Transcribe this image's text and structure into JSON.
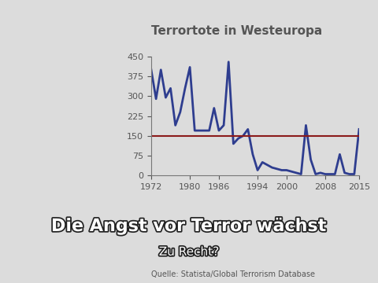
{
  "chart_data": {
    "type": "line",
    "title": "Terrortote in Westeuropa",
    "headline": "Die Angst vor Terror wächst",
    "subheadline": "Zu Recht?",
    "source": "Quelle: Statista/Global Terrorism Database",
    "x": [
      1972,
      1973,
      1974,
      1975,
      1976,
      1977,
      1978,
      1979,
      1980,
      1981,
      1982,
      1983,
      1984,
      1985,
      1986,
      1987,
      1988,
      1989,
      1990,
      1991,
      1992,
      1993,
      1994,
      1995,
      1996,
      1997,
      1998,
      1999,
      2000,
      2001,
      2002,
      2003,
      2004,
      2005,
      2006,
      2007,
      2008,
      2009,
      2010,
      2011,
      2012,
      2013,
      2014,
      2015
    ],
    "series": [
      {
        "name": "Terrortote",
        "color": "#2e3d8f",
        "values": [
          400,
          290,
          400,
          295,
          330,
          190,
          240,
          330,
          410,
          170,
          170,
          170,
          170,
          255,
          170,
          190,
          430,
          120,
          140,
          150,
          175,
          80,
          20,
          50,
          40,
          30,
          25,
          20,
          20,
          15,
          10,
          5,
          190,
          60,
          5,
          10,
          5,
          5,
          5,
          80,
          10,
          5,
          5,
          175
        ]
      }
    ],
    "reference_line": 150,
    "xlim": [
      1972,
      2015
    ],
    "xticks": [
      1972,
      1980,
      1986,
      1994,
      2000,
      2008,
      2015
    ],
    "ylim": [
      0,
      450
    ],
    "yticks": [
      0,
      75,
      150,
      225,
      300,
      375,
      450
    ],
    "grid": false
  }
}
